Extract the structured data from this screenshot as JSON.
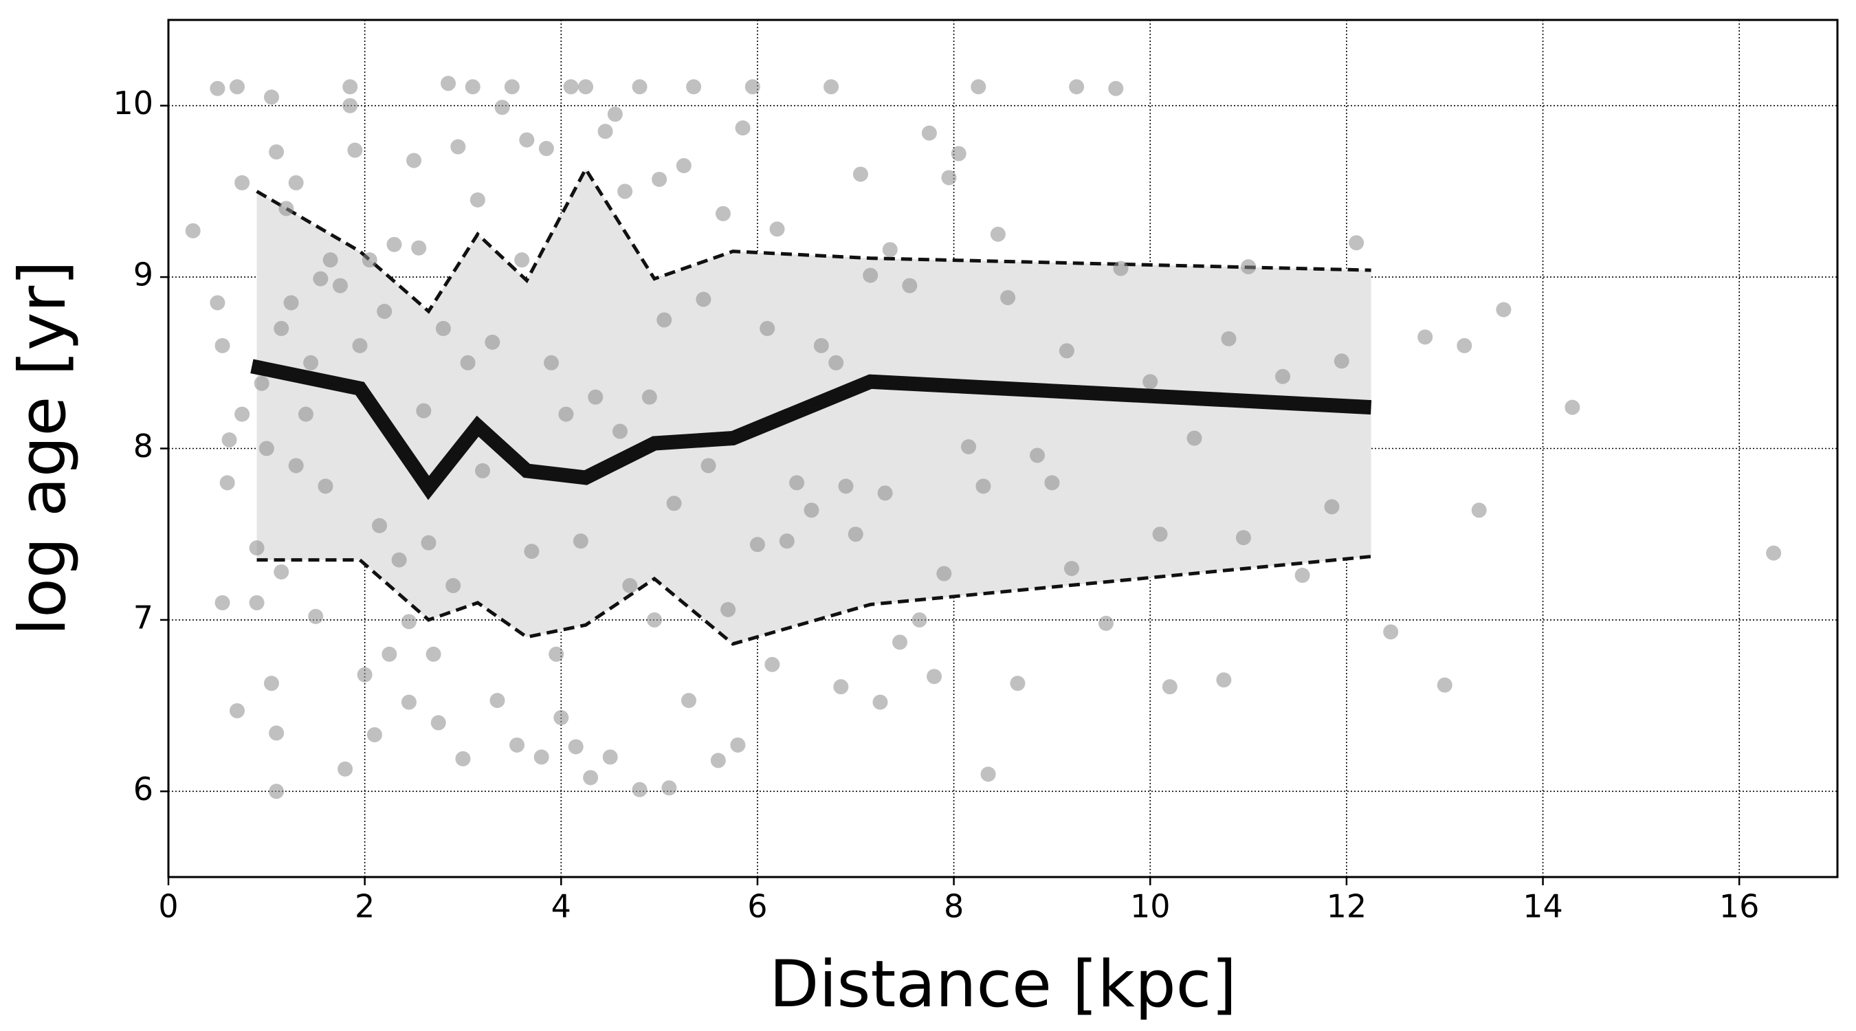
{
  "chart_data": {
    "type": "scatter",
    "xlabel": "Distance [kpc]",
    "ylabel": "log age [yr]",
    "xlim": [
      0,
      17
    ],
    "ylim": [
      5.5,
      10.5
    ],
    "xticks": [
      0,
      2,
      4,
      6,
      8,
      10,
      12,
      14,
      16
    ],
    "yticks": [
      6,
      7,
      8,
      9,
      10
    ],
    "grid": true,
    "color": "#8c8c8c",
    "x": [
      0.25,
      0.5,
      0.5,
      0.55,
      0.55,
      0.6,
      0.62,
      0.7,
      0.7,
      0.75,
      0.75,
      0.9,
      0.9,
      0.95,
      1.0,
      1.05,
      1.05,
      1.1,
      1.1,
      1.1,
      1.15,
      1.15,
      1.2,
      1.25,
      1.3,
      1.3,
      1.4,
      1.45,
      1.5,
      1.55,
      1.6,
      1.65,
      1.75,
      1.8,
      1.85,
      1.85,
      1.9,
      1.95,
      2.0,
      2.05,
      2.1,
      2.15,
      2.2,
      2.25,
      2.3,
      2.35,
      2.45,
      2.45,
      2.5,
      2.55,
      2.6,
      2.65,
      2.7,
      2.75,
      2.8,
      2.85,
      2.9,
      2.95,
      3.0,
      3.05,
      3.1,
      3.15,
      3.2,
      3.3,
      3.35,
      3.4,
      3.5,
      3.55,
      3.6,
      3.65,
      3.7,
      3.8,
      3.85,
      3.9,
      3.95,
      4.0,
      4.05,
      4.1,
      4.15,
      4.2,
      4.25,
      4.3,
      4.35,
      4.45,
      4.5,
      4.55,
      4.6,
      4.65,
      4.7,
      4.8,
      4.8,
      4.9,
      4.95,
      5.0,
      5.05,
      5.1,
      5.15,
      5.25,
      5.3,
      5.35,
      5.45,
      5.5,
      5.6,
      5.65,
      5.7,
      5.8,
      5.85,
      5.95,
      6.0,
      6.1,
      6.15,
      6.2,
      6.3,
      6.4,
      6.55,
      6.65,
      6.75,
      6.8,
      6.85,
      6.9,
      7.0,
      7.05,
      7.15,
      7.25,
      7.3,
      7.35,
      7.45,
      7.55,
      7.65,
      7.75,
      7.8,
      7.9,
      7.95,
      8.05,
      8.15,
      8.25,
      8.3,
      8.35,
      8.45,
      8.55,
      8.65,
      8.85,
      9.0,
      9.15,
      9.2,
      9.25,
      9.55,
      9.65,
      9.7,
      10.0,
      10.1,
      10.2,
      10.45,
      10.75,
      10.8,
      10.95,
      11.0,
      11.35,
      11.55,
      11.85,
      11.95,
      12.1,
      12.45,
      12.8,
      13.0,
      13.2,
      13.35,
      13.6,
      14.3,
      16.35
    ],
    "y": [
      9.27,
      10.1,
      8.85,
      8.6,
      7.1,
      7.8,
      8.05,
      10.11,
      6.47,
      9.55,
      8.2,
      7.1,
      7.42,
      8.38,
      8.0,
      10.05,
      6.63,
      9.73,
      6.34,
      6.0,
      7.28,
      8.7,
      9.4,
      8.85,
      9.55,
      7.9,
      8.2,
      8.5,
      7.02,
      8.99,
      7.78,
      9.1,
      8.95,
      6.13,
      10.11,
      10.0,
      9.74,
      8.6,
      6.68,
      9.1,
      6.33,
      7.55,
      8.8,
      6.8,
      9.19,
      7.35,
      6.99,
      6.52,
      9.68,
      9.17,
      8.22,
      7.45,
      6.8,
      6.4,
      8.7,
      10.13,
      7.2,
      9.76,
      6.19,
      8.5,
      10.11,
      9.45,
      7.87,
      8.62,
      6.53,
      9.99,
      10.11,
      6.27,
      9.1,
      9.8,
      7.4,
      6.2,
      9.75,
      8.5,
      6.8,
      6.43,
      8.2,
      10.11,
      6.26,
      7.46,
      10.11,
      6.08,
      8.3,
      9.85,
      6.2,
      9.95,
      8.1,
      9.5,
      7.2,
      10.11,
      6.01,
      8.3,
      7.0,
      9.57,
      8.75,
      6.02,
      7.68,
      9.65,
      6.53,
      10.11,
      8.87,
      7.9,
      6.18,
      9.37,
      7.06,
      6.27,
      9.87,
      10.11,
      7.44,
      8.7,
      6.74,
      9.28,
      7.46,
      7.8,
      7.64,
      8.6,
      10.11,
      8.5,
      6.61,
      7.78,
      7.5,
      9.6,
      9.01,
      6.52,
      7.74,
      9.16,
      6.87,
      8.95,
      7.0,
      9.84,
      6.67,
      7.27,
      9.58,
      9.72,
      8.01,
      10.11,
      7.78,
      6.1,
      9.25,
      8.88,
      6.63,
      7.96,
      7.8,
      8.57,
      7.3,
      10.11,
      6.98,
      10.1,
      9.05,
      8.39,
      7.5,
      6.61,
      8.06,
      6.65,
      8.64,
      7.48,
      9.06,
      8.42,
      7.26,
      7.66,
      8.51,
      9.2,
      6.93,
      8.65,
      6.62,
      8.6,
      7.64,
      8.81,
      8.24,
      7.39
    ],
    "band": {
      "color": "#e5e5e5",
      "line_color": "#111111",
      "line_style": "dashed",
      "x": [
        0.9,
        1.95,
        2.65,
        3.15,
        3.65,
        4.25,
        4.95,
        5.75,
        7.15,
        12.25
      ],
      "upper": [
        9.5,
        9.15,
        8.8,
        9.25,
        8.98,
        9.63,
        8.99,
        9.15,
        9.11,
        9.04
      ],
      "lower": [
        7.35,
        7.35,
        7.0,
        7.1,
        6.9,
        6.97,
        7.24,
        6.86,
        7.09,
        7.37
      ]
    },
    "median": {
      "type": "line",
      "color": "#111111",
      "x": [
        0.85,
        1.95,
        2.65,
        3.15,
        3.65,
        4.25,
        4.95,
        5.75,
        7.15,
        12.25
      ],
      "values": [
        8.48,
        8.35,
        7.77,
        8.13,
        7.87,
        7.83,
        8.03,
        8.06,
        8.39,
        8.24
      ]
    }
  }
}
